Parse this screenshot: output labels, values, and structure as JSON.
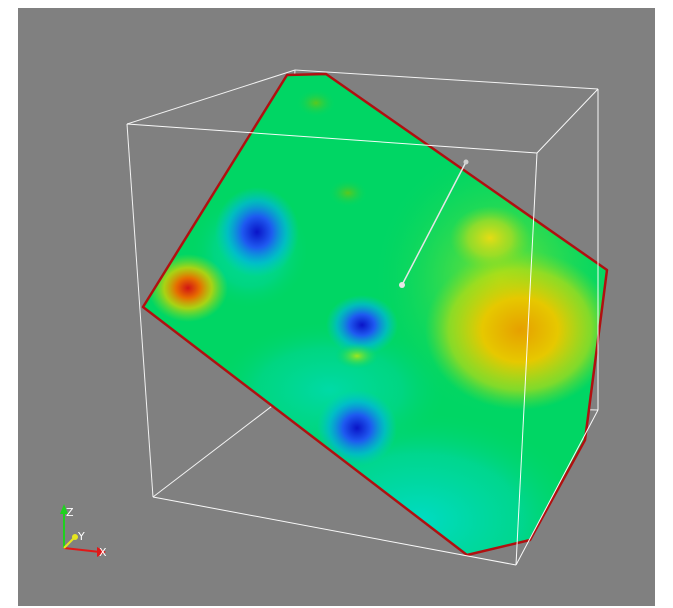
{
  "viewport": {
    "background": "#808080",
    "bounding_box_color": "#ffffff",
    "slice_outline_color": "#b01010",
    "widget_handle_color": "#e6e6e6"
  },
  "orientation_axes": {
    "x_label": "X",
    "y_label": "Y",
    "z_label": "Z",
    "x_color": "#e01818",
    "y_color": "#e6e61e",
    "z_color": "#1ed21e"
  },
  "colormap": {
    "name": "rainbow",
    "stops": [
      "#0a14d2",
      "#00c8c8",
      "#00d664",
      "#8ee01a",
      "#e6c800",
      "#e67800",
      "#d21414"
    ]
  }
}
